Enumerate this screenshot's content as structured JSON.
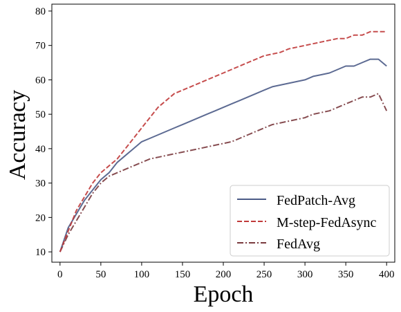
{
  "chart_data": {
    "type": "line",
    "xlabel": "Epoch",
    "ylabel": "Accuracy",
    "xlim": [
      -10,
      410
    ],
    "ylim": [
      7,
      82
    ],
    "xticks": [
      0,
      50,
      100,
      150,
      200,
      250,
      300,
      350,
      400
    ],
    "yticks": [
      10,
      20,
      30,
      40,
      50,
      60,
      70,
      80
    ],
    "grid": false,
    "legend_position": "lower-right",
    "x": [
      0,
      10,
      20,
      30,
      40,
      50,
      60,
      70,
      80,
      90,
      100,
      110,
      120,
      130,
      140,
      150,
      160,
      170,
      180,
      190,
      200,
      210,
      220,
      230,
      240,
      250,
      260,
      270,
      280,
      290,
      300,
      310,
      320,
      330,
      340,
      350,
      360,
      370,
      380,
      390,
      400
    ],
    "series": [
      {
        "name": "FedPatch-Avg",
        "color": "#4a5a86",
        "dash": "solid",
        "values": [
          10,
          17,
          21,
          25,
          28,
          31,
          33,
          36,
          38,
          40,
          42,
          43,
          44,
          45,
          46,
          47,
          48,
          49,
          50,
          51,
          52,
          53,
          54,
          55,
          56,
          57,
          58,
          58.5,
          59,
          59.5,
          60,
          61,
          61.5,
          62,
          63,
          64,
          64,
          65,
          66,
          66,
          64
        ]
      },
      {
        "name": "M-step-FedAsync",
        "color": "#c03a3a",
        "dash": "dashed",
        "values": [
          10,
          16,
          22,
          26,
          30,
          33,
          35,
          37,
          40,
          43,
          46,
          49,
          52,
          54,
          56,
          57,
          58,
          59,
          60,
          61,
          62,
          63,
          64,
          65,
          66,
          67,
          67.5,
          68,
          69,
          69.5,
          70,
          70.5,
          71,
          71.5,
          72,
          72,
          73,
          73,
          74,
          74,
          74
        ]
      },
      {
        "name": "FedAvg",
        "color": "#7a3a3e",
        "dash": "dashdot",
        "values": [
          10,
          15,
          19,
          23,
          27,
          30,
          32,
          33,
          34,
          35,
          36,
          37,
          37.5,
          38,
          38.5,
          39,
          39.5,
          40,
          40.5,
          41,
          41.5,
          42,
          43,
          44,
          45,
          46,
          47,
          47.5,
          48,
          48.5,
          49,
          50,
          50.5,
          51,
          52,
          53,
          54,
          55,
          55,
          56,
          51
        ]
      }
    ]
  }
}
